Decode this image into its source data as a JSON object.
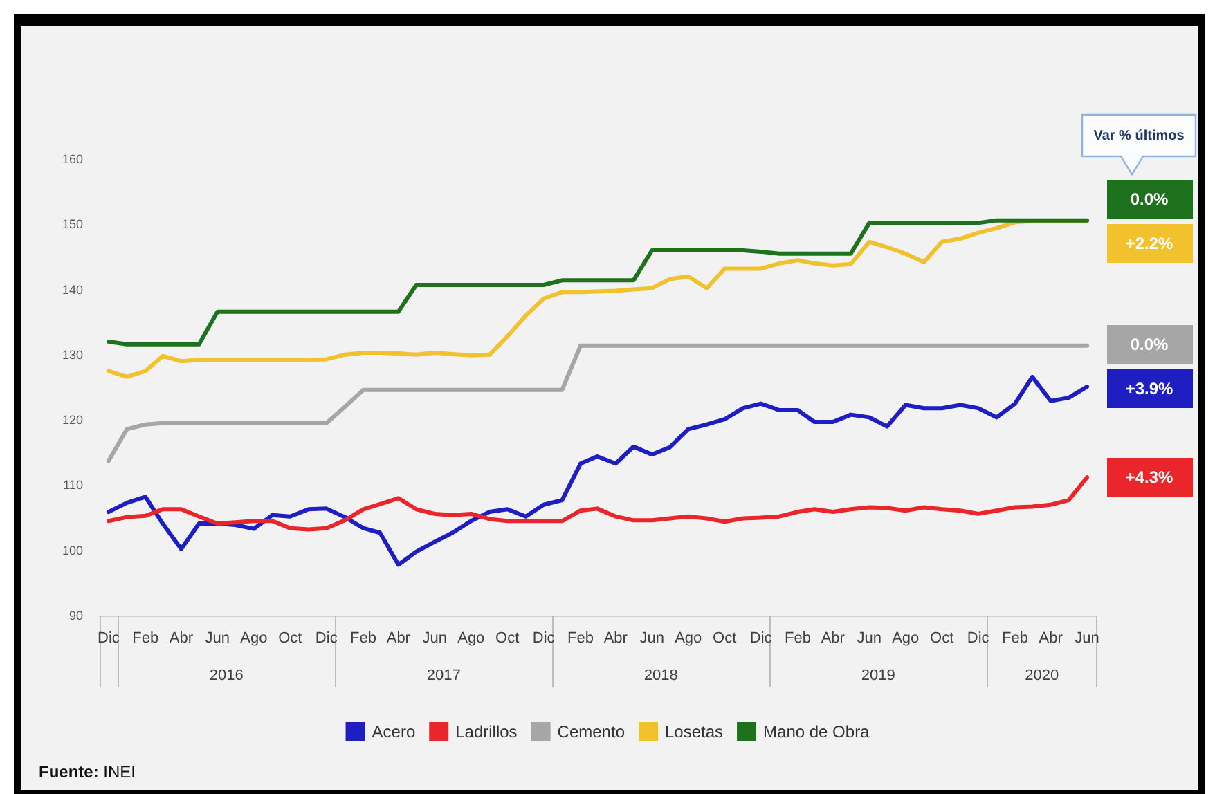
{
  "chart_data": {
    "type": "line",
    "marker": "none",
    "line_style": "solid",
    "legend": "bottom",
    "x": [
      "2015-12",
      "2016-01",
      "2016-02",
      "2016-03",
      "2016-04",
      "2016-05",
      "2016-06",
      "2016-07",
      "2016-08",
      "2016-09",
      "2016-10",
      "2016-11",
      "2016-12",
      "2017-01",
      "2017-02",
      "2017-03",
      "2017-04",
      "2017-05",
      "2017-06",
      "2017-07",
      "2017-08",
      "2017-09",
      "2017-10",
      "2017-11",
      "2017-12",
      "2018-01",
      "2018-02",
      "2018-03",
      "2018-04",
      "2018-05",
      "2018-06",
      "2018-07",
      "2018-08",
      "2018-09",
      "2018-10",
      "2018-11",
      "2018-12",
      "2019-01",
      "2019-02",
      "2019-03",
      "2019-04",
      "2019-05",
      "2019-06",
      "2019-07",
      "2019-08",
      "2019-09",
      "2019-10",
      "2019-11",
      "2019-12",
      "2020-01",
      "2020-02",
      "2020-03",
      "2020-04",
      "2020-05",
      "2020-06"
    ],
    "xlim": [
      "2015-11-16",
      "2020-06-16"
    ],
    "xticks": [
      {
        "value": "2015-11-16",
        "label": null
      },
      {
        "value": "2015-12",
        "label": "Dic"
      },
      {
        "value": "2015-12-16",
        "label": null
      },
      {
        "value": "2016-02",
        "label": "Feb"
      },
      {
        "value": "2016-04",
        "label": "Abr"
      },
      {
        "value": "2016-06",
        "label": "Jun"
      },
      {
        "value": "2016-08",
        "label": "Ago"
      },
      {
        "value": "2016-10",
        "label": "Oct"
      },
      {
        "value": "2016-12",
        "label": "Dic"
      },
      {
        "value": "2016-12-16",
        "label": null
      },
      {
        "value": "2017-02",
        "label": "Feb"
      },
      {
        "value": "2017-04",
        "label": "Abr"
      },
      {
        "value": "2017-06",
        "label": "Jun"
      },
      {
        "value": "2017-08",
        "label": "Ago"
      },
      {
        "value": "2017-10",
        "label": "Oct"
      },
      {
        "value": "2017-12",
        "label": "Dic"
      },
      {
        "value": "2017-12-16",
        "label": null
      },
      {
        "value": "2018-02",
        "label": "Feb"
      },
      {
        "value": "2018-04",
        "label": "Abr"
      },
      {
        "value": "2018-06",
        "label": "Jun"
      },
      {
        "value": "2018-08",
        "label": "Ago"
      },
      {
        "value": "2018-10",
        "label": "Oct"
      },
      {
        "value": "2018-12",
        "label": "Dic"
      },
      {
        "value": "2018-12-16",
        "label": null
      },
      {
        "value": "2019-02",
        "label": "Feb"
      },
      {
        "value": "2019-04",
        "label": "Abr"
      },
      {
        "value": "2019-06",
        "label": "Jun"
      },
      {
        "value": "2019-08",
        "label": "Ago"
      },
      {
        "value": "2019-10",
        "label": "Oct"
      },
      {
        "value": "2019-12",
        "label": "Dic"
      },
      {
        "value": "2019-12-16",
        "label": null
      },
      {
        "value": "2020-02",
        "label": "Feb"
      },
      {
        "value": "2020-04",
        "label": "Abr"
      },
      {
        "value": "2020-06",
        "label": "Jun"
      },
      {
        "value": "2020-06-16",
        "label": null
      }
    ],
    "x2lim": [
      "2015-11-16",
      "2020-06-16"
    ],
    "x2ticks": [
      {
        "value": "2016-06-16",
        "label": "2016"
      },
      {
        "value": "2017-06-16",
        "label": "2017"
      },
      {
        "value": "2018-06-16",
        "label": "2018"
      },
      {
        "value": "2019-06-16",
        "label": "2019"
      },
      {
        "value": "2020-03-17",
        "label": "2020"
      }
    ],
    "ylim": [
      90,
      160
    ],
    "yticks": [
      90,
      100,
      110,
      120,
      130,
      140,
      150,
      160
    ],
    "series": [
      {
        "name": "Acero",
        "color": "#1f1fc1",
        "values": [
          105.9,
          107.3,
          108.2,
          104.1,
          100.2,
          104.1,
          104.1,
          103.9,
          103.3,
          105.4,
          105.2,
          106.3,
          106.4,
          105.1,
          103.4,
          102.7,
          97.8,
          99.8,
          101.3,
          102.7,
          104.5,
          105.9,
          106.3,
          105.2,
          107.0,
          107.7,
          113.3,
          114.4,
          113.3,
          115.9,
          114.7,
          115.8,
          118.6,
          119.3,
          120.1,
          121.8,
          122.5,
          121.5,
          121.5,
          119.7,
          119.7,
          120.8,
          120.4,
          119.0,
          122.3,
          121.8,
          121.8,
          122.3,
          121.8,
          120.4,
          122.5,
          126.6,
          122.9,
          123.4,
          125.1
        ]
      },
      {
        "name": "Ladrillos",
        "color": "#e8262b",
        "values": [
          104.5,
          105.1,
          105.3,
          106.3,
          106.3,
          105.2,
          104.1,
          104.3,
          104.5,
          104.5,
          103.4,
          103.2,
          103.4,
          104.6,
          106.3,
          107.1,
          108.0,
          106.3,
          105.6,
          105.4,
          105.6,
          104.8,
          104.5,
          104.5,
          104.5,
          104.5,
          106.1,
          106.4,
          105.2,
          104.6,
          104.6,
          104.9,
          105.2,
          104.9,
          104.4,
          104.9,
          105.0,
          105.2,
          105.9,
          106.3,
          105.9,
          106.3,
          106.6,
          106.5,
          106.1,
          106.6,
          106.3,
          106.1,
          105.6,
          106.1,
          106.6,
          106.7,
          107.0,
          107.7,
          111.2
        ]
      },
      {
        "name": "Cemento",
        "color": "#a6a6a6",
        "values": [
          113.7,
          118.6,
          119.3,
          119.5,
          119.5,
          119.5,
          119.5,
          119.5,
          119.5,
          119.5,
          119.5,
          119.5,
          119.5,
          122.0,
          124.6,
          124.6,
          124.6,
          124.6,
          124.6,
          124.6,
          124.6,
          124.6,
          124.6,
          124.6,
          124.6,
          124.6,
          131.4,
          131.4,
          131.4,
          131.4,
          131.4,
          131.4,
          131.4,
          131.4,
          131.4,
          131.4,
          131.4,
          131.4,
          131.4,
          131.4,
          131.4,
          131.4,
          131.4,
          131.4,
          131.4,
          131.4,
          131.4,
          131.4,
          131.4,
          131.4,
          131.4,
          131.4,
          131.4,
          131.4,
          131.4
        ]
      },
      {
        "name": "Losetas",
        "color": "#f2c12e",
        "values": [
          127.5,
          126.6,
          127.5,
          129.8,
          129.0,
          129.2,
          129.2,
          129.2,
          129.2,
          129.2,
          129.2,
          129.2,
          129.3,
          130.0,
          130.3,
          130.3,
          130.2,
          130.0,
          130.3,
          130.1,
          129.9,
          130.0,
          132.8,
          136.0,
          138.6,
          139.6,
          139.6,
          139.7,
          139.8,
          140.0,
          140.2,
          141.6,
          142.0,
          140.2,
          143.2,
          143.2,
          143.2,
          144.0,
          144.5,
          144.0,
          143.7,
          143.9,
          147.3,
          146.5,
          145.5,
          144.2,
          147.3,
          147.8,
          148.7,
          149.4,
          150.3,
          150.5,
          150.5,
          150.5,
          150.5
        ]
      },
      {
        "name": "Mano de Obra",
        "color": "#1e721e",
        "values": [
          132.0,
          131.6,
          131.6,
          131.6,
          131.6,
          131.6,
          136.6,
          136.6,
          136.6,
          136.6,
          136.6,
          136.6,
          136.6,
          136.6,
          136.6,
          136.6,
          136.6,
          140.7,
          140.7,
          140.7,
          140.7,
          140.7,
          140.7,
          140.7,
          140.7,
          141.4,
          141.4,
          141.4,
          141.4,
          141.4,
          146.0,
          146.0,
          146.0,
          146.0,
          146.0,
          146.0,
          145.8,
          145.5,
          145.5,
          145.5,
          145.5,
          145.5,
          150.2,
          150.2,
          150.2,
          150.2,
          150.2,
          150.2,
          150.2,
          150.6,
          150.6,
          150.6,
          150.6,
          150.6,
          150.6
        ]
      }
    ],
    "annotations": [
      "Var % últimos",
      {
        "text": "0.0%",
        "x": "2020-06",
        "y": 150.6
      },
      {
        "text": "+2.2%",
        "x": "2020-06",
        "y": 150.5
      },
      {
        "text": "0.0%",
        "x": "2020-06",
        "y": 131.4
      },
      {
        "text": "+3.9%",
        "x": "2020-06",
        "y": 125.1
      },
      {
        "text": "+4.3%",
        "x": "2020-06",
        "y": 111.2
      },
      "Fuente: INEI"
    ]
  }
}
